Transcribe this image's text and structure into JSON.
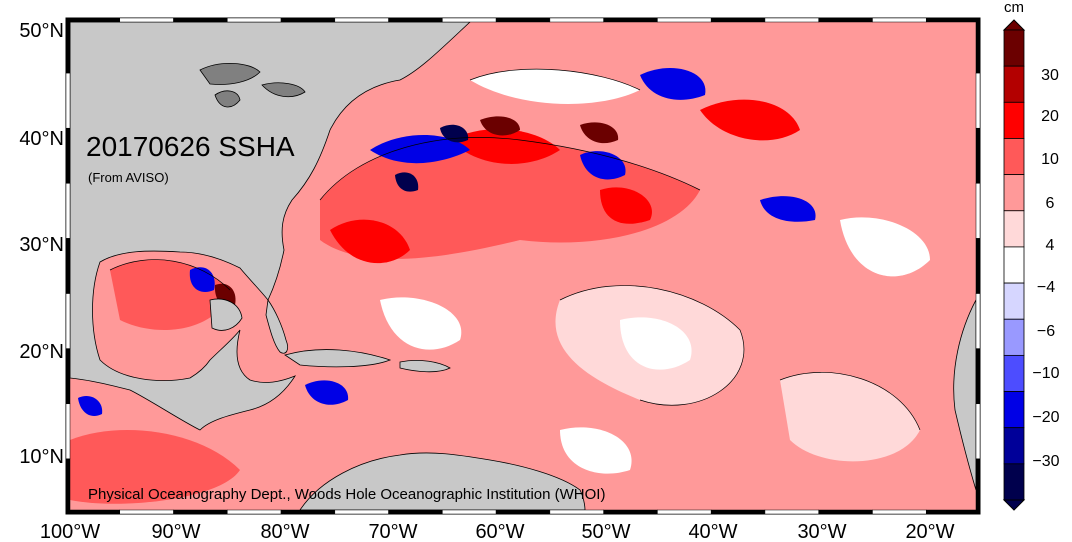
{
  "map": {
    "title": "20170626 SSHA",
    "subtitle": "(From AVISO)",
    "credit": "Physical Oceanography Dept., Woods Hole Oceanographic Institution (WHOI)",
    "lon_labels": [
      "100°W",
      "90°W",
      "80°W",
      "70°W",
      "60°W",
      "50°W",
      "40°W",
      "30°W",
      "20°W"
    ],
    "lat_labels": [
      "50°N",
      "40°N",
      "30°N",
      "20°N",
      "10°N"
    ],
    "land_color": "#c8c8c8",
    "ocean_base_color": "#ff9999"
  },
  "colorbar": {
    "unit": "cm",
    "ticks": [
      "30",
      "20",
      "10",
      "6",
      "4",
      "−4",
      "−6",
      "−10",
      "−20",
      "−30"
    ],
    "colors": [
      "#6b0000",
      "#b30000",
      "#ff0000",
      "#ff5959",
      "#ff9999",
      "#ffd9d9",
      "#ffffff",
      "#d6d6ff",
      "#9999ff",
      "#4d4dff",
      "#0000e6",
      "#000099",
      "#00004d"
    ]
  }
}
